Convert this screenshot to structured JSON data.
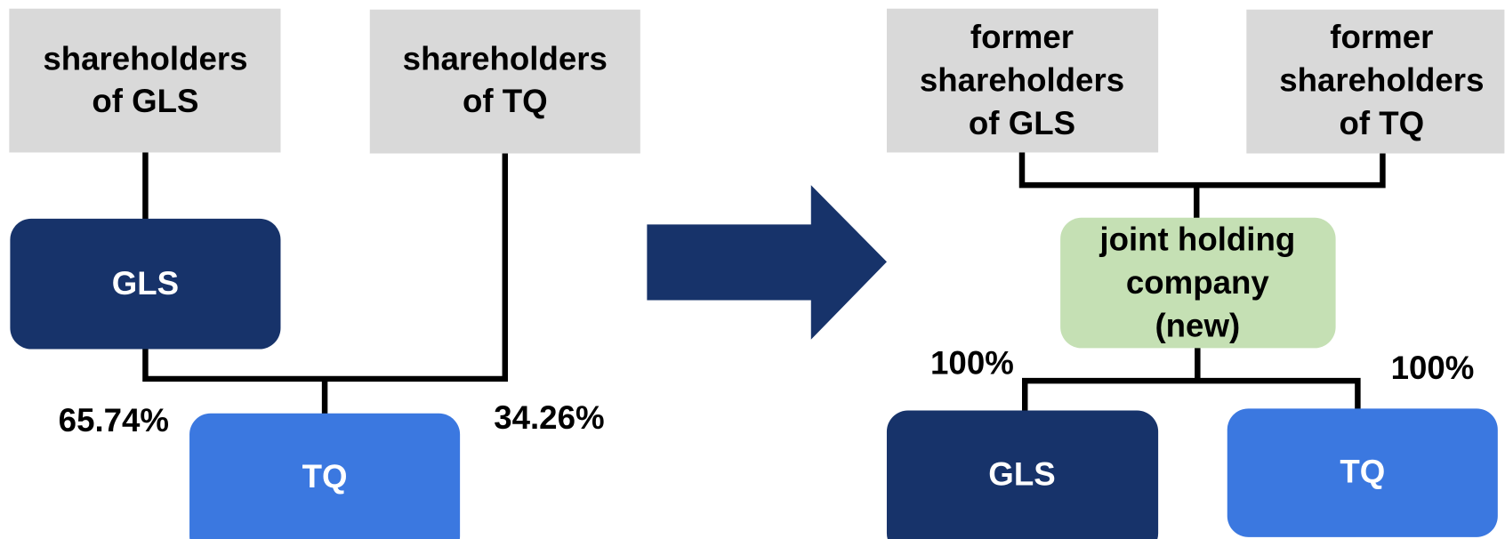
{
  "before": {
    "nodes": [
      {
        "label": [
          "shareholders",
          "of GLS"
        ]
      },
      {
        "label": [
          "shareholders",
          "of TQ"
        ]
      },
      {
        "label": [
          "GLS"
        ]
      },
      {
        "label": [
          "TQ"
        ]
      }
    ],
    "stakes": [
      "65.74%",
      "34.26%"
    ]
  },
  "after": {
    "nodes": [
      {
        "label": [
          "former",
          "shareholders",
          "of GLS"
        ]
      },
      {
        "label": [
          "former",
          "shareholders",
          "of TQ"
        ]
      },
      {
        "label": [
          "joint holding",
          "company",
          "(new)"
        ]
      },
      {
        "label": [
          "GLS"
        ]
      },
      {
        "label": [
          "TQ"
        ]
      }
    ],
    "stakes": [
      "100%",
      "100%"
    ]
  }
}
